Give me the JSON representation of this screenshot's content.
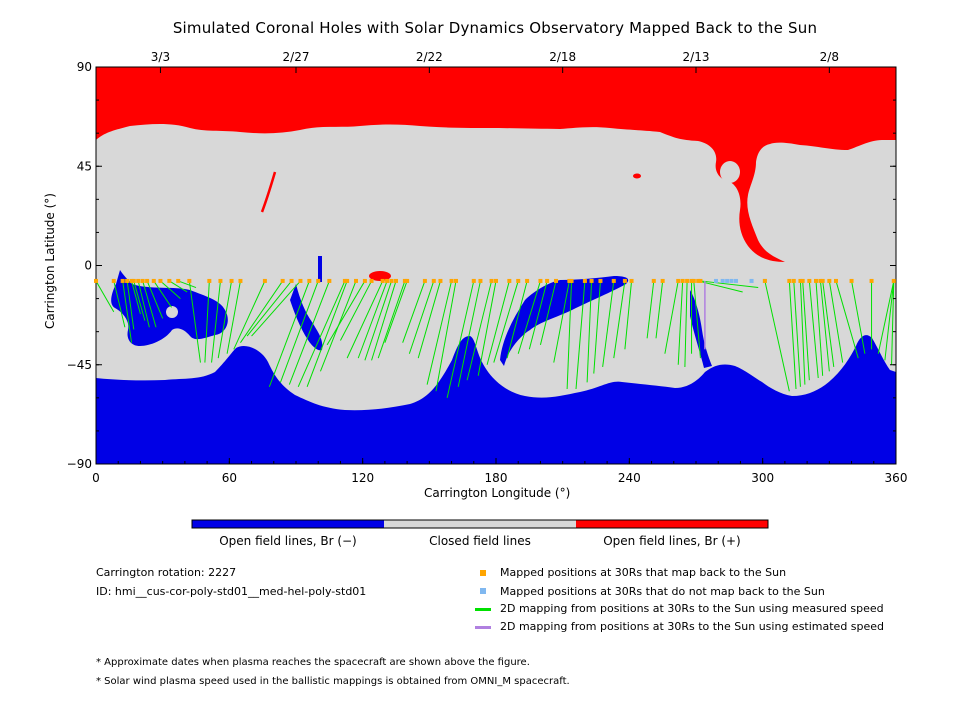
{
  "chart_data": {
    "type": "map",
    "title": "Simulated Coronal Holes with Solar Dynamics Observatory Mapped Back to the Sun",
    "xlabel": "Carrington Longitude (°)",
    "ylabel": "Carrington Latitude (°)",
    "xlim": [
      0,
      360
    ],
    "ylim": [
      -90,
      90
    ],
    "x_ticks": [
      0,
      60,
      120,
      180,
      240,
      300,
      360
    ],
    "y_ticks": [
      90,
      45,
      0,
      -45,
      -90
    ],
    "y_tick_labels": [
      "90",
      "45",
      "0",
      "−45",
      "−90"
    ],
    "top_axis_dates": [
      {
        "label": "3/3",
        "lon": 29
      },
      {
        "label": "2/27",
        "lon": 90
      },
      {
        "label": "2/22",
        "lon": 150
      },
      {
        "label": "2/18",
        "lon": 210
      },
      {
        "label": "2/13",
        "lon": 270
      },
      {
        "label": "2/8",
        "lon": 330
      }
    ],
    "colors": {
      "open_negative": "#0000e6",
      "closed": "#d8d8d8",
      "open_positive": "#ff0000",
      "mapped_point": "#ffa500",
      "unmapped_point": "#80b8f0",
      "measured_line": "#00e000",
      "estimated_line": "#b080e0"
    },
    "mapped_longitudes": [
      0,
      8,
      12,
      14,
      16,
      17,
      19,
      21,
      23,
      26,
      29,
      33,
      37,
      42,
      51,
      56,
      61,
      65,
      76,
      84,
      88,
      92,
      96,
      100,
      105,
      112,
      113,
      117,
      121,
      124,
      129,
      131,
      133,
      135,
      139,
      140,
      148,
      152,
      155,
      160,
      162,
      170,
      173,
      178,
      180,
      186,
      190,
      194,
      200,
      203,
      207,
      213,
      214,
      220,
      223,
      227,
      233,
      238,
      241,
      251,
      255,
      262,
      264,
      266,
      268,
      269,
      271,
      272,
      301,
      312,
      314,
      317,
      318,
      321,
      324,
      326,
      327,
      330,
      333,
      340,
      349,
      359
    ],
    "unmapped_longitudes": [
      279,
      282,
      284,
      286,
      288,
      295,
      301
    ],
    "measured_mappings": [
      [
        8,
        -21
      ],
      [
        13,
        -28
      ],
      [
        16,
        -35
      ],
      [
        17,
        -29
      ],
      [
        20,
        -22
      ],
      [
        22,
        -25
      ],
      [
        24,
        -28
      ],
      [
        27,
        -28
      ],
      [
        30,
        -24
      ],
      [
        34,
        -19
      ],
      [
        38,
        -15
      ],
      [
        41,
        -12
      ],
      [
        45,
        -10
      ],
      [
        47,
        -44
      ],
      [
        49,
        -44
      ],
      [
        52,
        -44
      ],
      [
        55,
        -42
      ],
      [
        59,
        -40
      ],
      [
        62,
        -38
      ],
      [
        65,
        -35
      ],
      [
        68,
        -32
      ],
      [
        70,
        -32
      ],
      [
        78,
        -55
      ],
      [
        83,
        -53
      ],
      [
        87,
        -54
      ],
      [
        91,
        -55
      ],
      [
        95,
        -55
      ],
      [
        101,
        -48
      ],
      [
        104,
        -36
      ],
      [
        110,
        -34
      ],
      [
        113,
        -42
      ],
      [
        118,
        -42
      ],
      [
        121,
        -43
      ],
      [
        124,
        -43
      ],
      [
        127,
        -42
      ],
      [
        130,
        -35
      ],
      [
        138,
        -35
      ],
      [
        141,
        -40
      ],
      [
        145,
        -42
      ],
      [
        149,
        -54
      ],
      [
        153,
        -57
      ],
      [
        158,
        -60
      ],
      [
        163,
        -55
      ],
      [
        167,
        -52
      ],
      [
        172,
        -50
      ],
      [
        176,
        -45
      ],
      [
        179,
        -44
      ],
      [
        185,
        -42
      ],
      [
        190,
        -40
      ],
      [
        195,
        -38
      ],
      [
        200,
        -36
      ],
      [
        206,
        -44
      ],
      [
        212,
        -56
      ],
      [
        216,
        -56
      ],
      [
        221,
        -53
      ],
      [
        224,
        -49
      ],
      [
        228,
        -46
      ],
      [
        233,
        -42
      ],
      [
        238,
        -38
      ],
      [
        248,
        -33
      ],
      [
        252,
        -33
      ],
      [
        256,
        -40
      ],
      [
        262,
        -45
      ],
      [
        265,
        -46
      ],
      [
        268,
        -40
      ],
      [
        272,
        -42
      ],
      [
        291,
        -12
      ],
      [
        298,
        -10
      ],
      [
        312,
        -57
      ],
      [
        315,
        -56
      ],
      [
        317,
        -55
      ],
      [
        319,
        -54
      ],
      [
        321,
        -52
      ],
      [
        325,
        -51
      ],
      [
        327,
        -50
      ],
      [
        330,
        -48
      ],
      [
        332,
        -46
      ],
      [
        336,
        -44
      ],
      [
        343,
        -42
      ],
      [
        346,
        -40
      ],
      [
        349,
        -38
      ],
      [
        352,
        -40
      ],
      [
        355,
        -43
      ],
      [
        358,
        -45
      ]
    ],
    "estimated_mapping": [
      [
        274,
        -38
      ]
    ],
    "colorbar_labels": [
      "Open field lines, Br (−)",
      "Closed field lines",
      "Open field lines, Br (+)"
    ],
    "legend": [
      "Mapped positions at 30Rs that map back to the Sun",
      "Mapped positions at 30Rs that do not map back to the Sun",
      "2D mapping from positions at 30Rs to the Sun using measured speed",
      "2D mapping from positions at 30Rs to the Sun using estimated speed"
    ],
    "info": {
      "rotation": "Carrington rotation: 2227",
      "id": "ID: hmi__cus-cor-poly-std01__med-hel-poly-std01"
    },
    "notes": [
      "* Approximate dates when plasma reaches the spacecraft are shown above the figure.",
      "* Solar wind plasma speed used in the ballistic mappings is obtained from OMNI_M spacecraft."
    ],
    "orbit_lat": -7
  }
}
